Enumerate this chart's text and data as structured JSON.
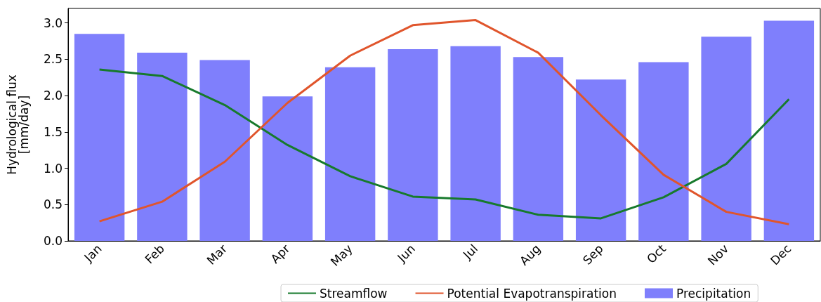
{
  "chart_data": {
    "type": "bar",
    "ylabel": "Hydrological flux\n[mm/day]",
    "categories": [
      "Jan",
      "Feb",
      "Mar",
      "Apr",
      "May",
      "Jun",
      "Jul",
      "Aug",
      "Sep",
      "Oct",
      "Nov",
      "Dec"
    ],
    "series": [
      {
        "name": "Streamflow",
        "type": "line",
        "color": "#177a2c",
        "values": [
          2.36,
          2.27,
          1.87,
          1.32,
          0.89,
          0.61,
          0.57,
          0.36,
          0.31,
          0.6,
          1.06,
          1.95
        ]
      },
      {
        "name": "Potential Evapotranspiration",
        "type": "line",
        "color": "#e0552c",
        "values": [
          0.27,
          0.54,
          1.09,
          1.9,
          2.55,
          2.97,
          3.04,
          2.59,
          1.73,
          0.91,
          0.4,
          0.23
        ]
      },
      {
        "name": "Precipitation",
        "color": "#7f7ffc",
        "values": [
          2.85,
          2.59,
          2.49,
          1.99,
          2.39,
          2.64,
          2.68,
          2.53,
          2.22,
          2.46,
          2.81,
          3.03
        ]
      }
    ],
    "ylim": [
      0,
      3.2
    ],
    "yticks": [
      {
        "value": 0,
        "label": "0.0"
      },
      {
        "value": 0.5,
        "label": "0.5"
      },
      {
        "value": 1,
        "label": "1.0"
      },
      {
        "value": 1.5,
        "label": "1.5"
      },
      {
        "value": 2,
        "label": "2.0"
      },
      {
        "value": 2.5,
        "label": "2.5"
      },
      {
        "value": 3,
        "label": "3.0"
      }
    ],
    "grid": false,
    "legend": "bottom",
    "marker": "none"
  }
}
